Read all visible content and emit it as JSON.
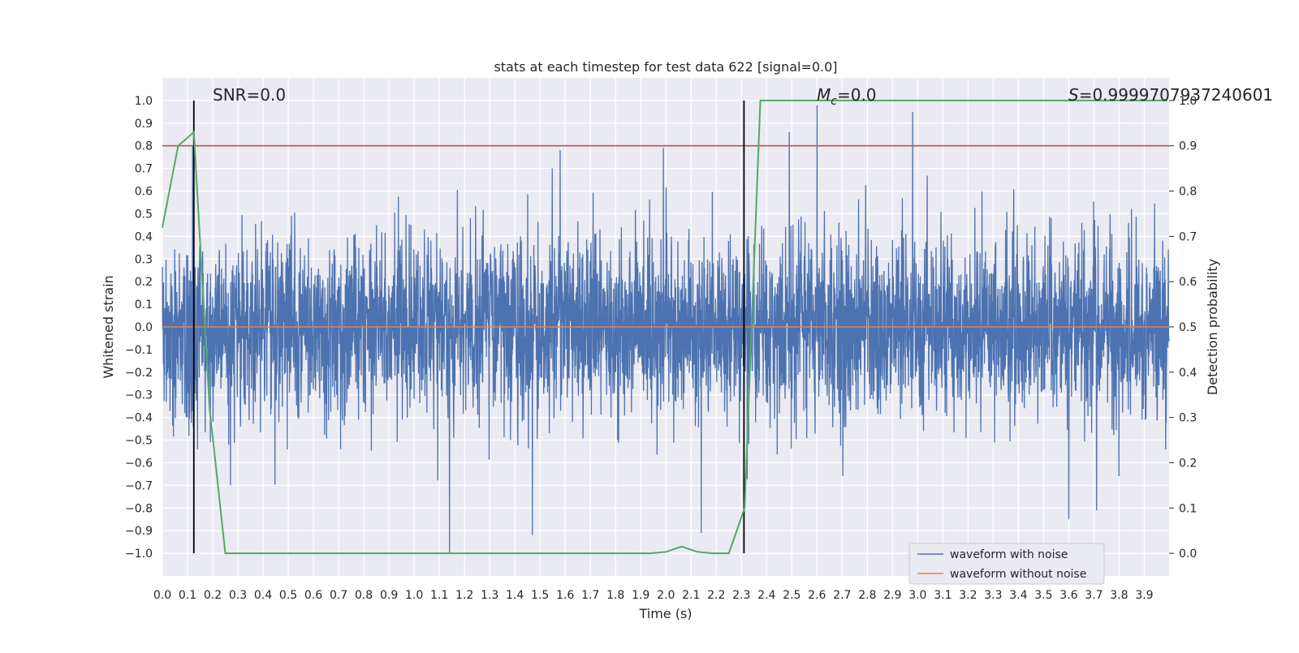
{
  "chart_data": {
    "type": "line",
    "title": "stats at each timestep for test data 622 [signal=0.0]",
    "xlabel": "Time (s)",
    "ylabel": "Whitened strain",
    "y2label": "Detection probability",
    "xlim": [
      0.0,
      3.9985
    ],
    "ylim": [
      -1.1,
      1.1
    ],
    "y2lim": [
      -0.05,
      1.05
    ],
    "x_ticks": [
      "0.0",
      "0.1",
      "0.2",
      "0.3",
      "0.4",
      "0.5",
      "0.6",
      "0.7",
      "0.8",
      "0.9",
      "1.0",
      "1.1",
      "1.2",
      "1.3",
      "1.4",
      "1.5",
      "1.6",
      "1.7",
      "1.8",
      "1.9",
      "2.0",
      "2.1",
      "2.2",
      "2.3",
      "2.4",
      "2.5",
      "2.6",
      "2.7",
      "2.8",
      "2.9",
      "3.0",
      "3.1",
      "3.2",
      "3.3",
      "3.4",
      "3.5",
      "3.6",
      "3.7",
      "3.8",
      "3.9"
    ],
    "y_ticks": [
      "1.0",
      "0.9",
      "0.8",
      "0.7",
      "0.6",
      "0.5",
      "0.4",
      "0.3",
      "0.2",
      "0.1",
      "0.0",
      "−0.1",
      "−0.2",
      "−0.3",
      "−0.4",
      "−0.5",
      "−0.6",
      "−0.7",
      "−0.8",
      "−0.9",
      "−1.0"
    ],
    "y2_ticks": [
      "1.0",
      "0.9",
      "0.8",
      "0.7",
      "0.6",
      "0.5",
      "0.4",
      "0.3",
      "0.2",
      "0.1",
      "0.0"
    ],
    "grid": true,
    "legend_position": "lower-right",
    "annotations": {
      "snr": "SNR=0.0",
      "mc_symbol": "M",
      "mc_sub": "c",
      "mc_value": "=0.0",
      "s_symbol": "S",
      "s_value": "=0.9999707937240601"
    },
    "vertical_lines_x": [
      0.125,
      2.31
    ],
    "threshold_y2": 0.9,
    "series": [
      {
        "name": "waveform with noise",
        "color": "#4c72b0",
        "noise_amplitude": 0.2,
        "highlight_peaks": [
          {
            "x": 0.12,
            "y": 0.8
          },
          {
            "x": 0.14,
            "y": -0.54
          },
          {
            "x": 0.27,
            "y": -0.7
          },
          {
            "x": 1.14,
            "y": -1.0
          },
          {
            "x": 1.47,
            "y": -0.92
          },
          {
            "x": 1.58,
            "y": 0.78
          },
          {
            "x": 1.99,
            "y": 0.79
          },
          {
            "x": 2.14,
            "y": -0.91
          },
          {
            "x": 2.6,
            "y": 0.98
          },
          {
            "x": 2.49,
            "y": 0.86
          },
          {
            "x": 2.98,
            "y": 0.95
          },
          {
            "x": 3.6,
            "y": -0.85
          },
          {
            "x": 3.71,
            "y": -0.81
          }
        ]
      },
      {
        "name": "waveform without noise",
        "color": "#dd8452",
        "constant_value": 0.0
      },
      {
        "name": "detection probability",
        "axis": "y2",
        "color": "#55a868",
        "x": [
          0.0,
          0.0625,
          0.125,
          0.1875,
          0.25,
          0.3125,
          0.5,
          1.0,
          1.5,
          1.9375,
          2.0,
          2.0625,
          2.125,
          2.1875,
          2.25,
          2.3125,
          2.375,
          3.0,
          3.5,
          3.99
        ],
        "y": [
          0.72,
          0.9,
          0.93,
          0.32,
          0.0,
          0.0,
          0.0,
          0.0,
          0.0,
          0.0,
          0.003,
          0.015,
          0.003,
          0.0,
          0.0,
          0.1,
          0.99997,
          0.99997,
          0.99997,
          0.99997
        ]
      }
    ]
  }
}
